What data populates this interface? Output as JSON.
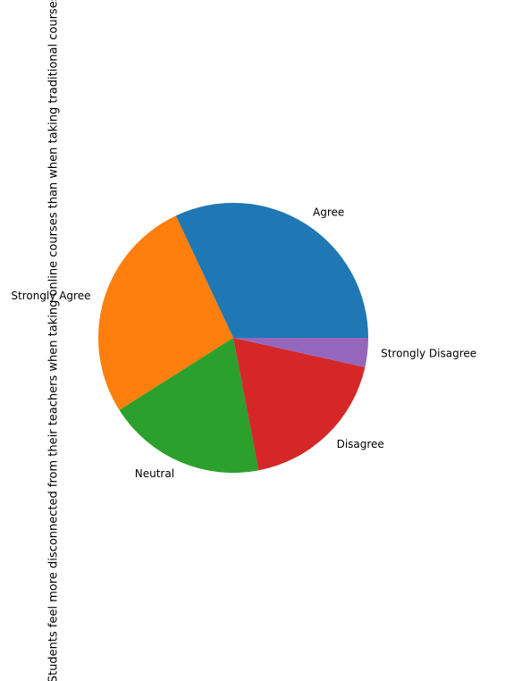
{
  "chart_data": {
    "type": "pie",
    "ylabel": "Students feel more disconnected from their teachers when taking online courses than when taking traditional courses-",
    "start_angle_deg": 0,
    "direction": "counterclockwise",
    "slices": [
      {
        "label": "Agree",
        "value": 32,
        "color": "#1f77b4"
      },
      {
        "label": "Strongly Agree",
        "value": 27,
        "color": "#ff7f0e"
      },
      {
        "label": "Neutral",
        "value": 19,
        "color": "#2ca02c"
      },
      {
        "label": "Disagree",
        "value": 18.5,
        "color": "#d62728"
      },
      {
        "label": "Strongly Disagree",
        "value": 3.5,
        "color": "#9467bd"
      }
    ]
  }
}
